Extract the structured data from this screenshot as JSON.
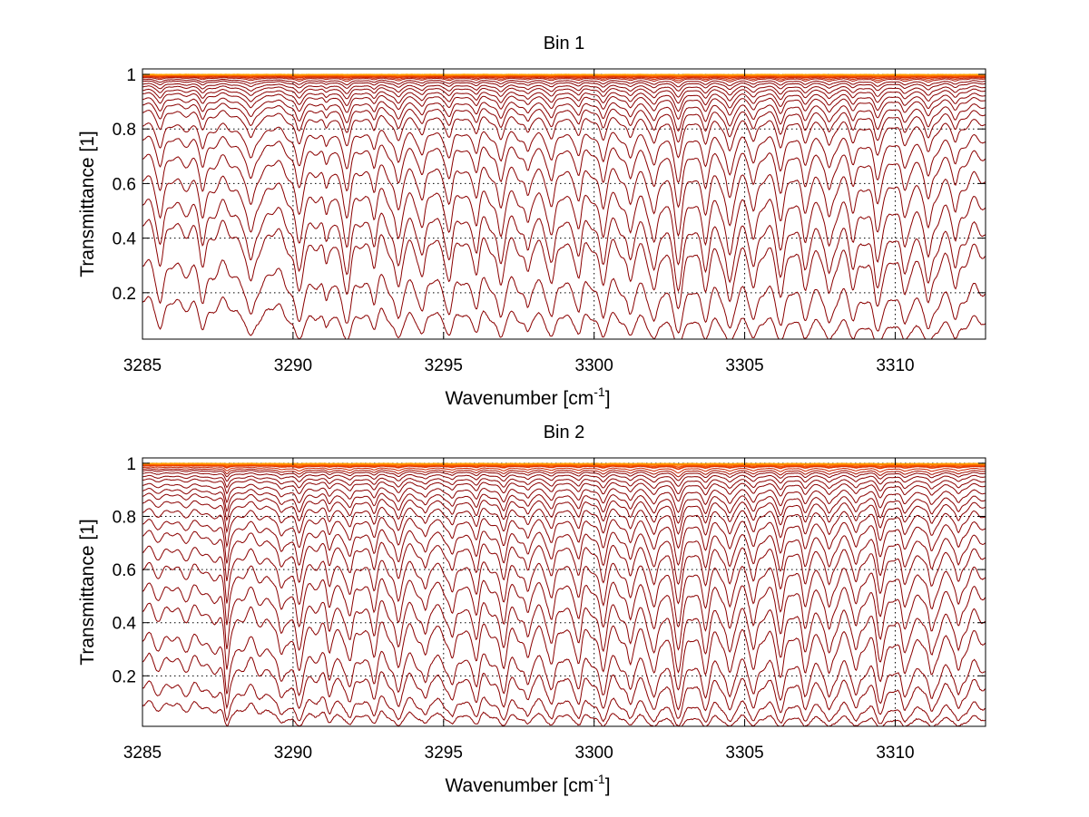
{
  "chart_data": [
    {
      "type": "line",
      "title": "Bin 1",
      "xlabel": "Wavenumber [cm",
      "xlabel_sup": "-1",
      "xlabel_end": "]",
      "ylabel": "Transmittance [1]",
      "xlim": [
        3285,
        3313
      ],
      "ylim": [
        0.03,
        1.02
      ],
      "xticks": [
        3285,
        3290,
        3295,
        3300,
        3305,
        3310
      ],
      "xtick_labels": [
        "3285",
        "3290",
        "3295",
        "3300",
        "3305",
        "3310"
      ],
      "yticks": [
        0.2,
        0.4,
        0.6,
        0.8,
        1
      ],
      "ytick_labels": [
        "0.2",
        "0.4",
        "0.6",
        "0.8",
        "1"
      ],
      "grid": true,
      "colors": [
        "#8b0000",
        "#aa1100",
        "#c82200",
        "#e03300",
        "#f25000",
        "#ff7000",
        "#ffa000"
      ],
      "series_base_transmittance": [
        0.06,
        0.15,
        0.28,
        0.36,
        0.46,
        0.56,
        0.65,
        0.72,
        0.79,
        0.83,
        0.86,
        0.89,
        0.91,
        0.93,
        0.945,
        0.96,
        0.97,
        0.98,
        0.985,
        0.99,
        0.994,
        0.997,
        0.999
      ],
      "absorption_lines": [
        {
          "x": 3285.6,
          "depth": 0.5,
          "width": 0.12
        },
        {
          "x": 3287.0,
          "depth": 0.55,
          "width": 0.12
        },
        {
          "x": 3288.6,
          "depth": 0.9,
          "width": 0.16
        },
        {
          "x": 3290.2,
          "depth": 1.0,
          "width": 0.16
        },
        {
          "x": 3291.1,
          "depth": 0.45,
          "width": 0.1
        },
        {
          "x": 3291.8,
          "depth": 0.95,
          "width": 0.15
        },
        {
          "x": 3292.7,
          "depth": 0.4,
          "width": 0.1
        },
        {
          "x": 3293.5,
          "depth": 0.8,
          "width": 0.14
        },
        {
          "x": 3294.3,
          "depth": 0.55,
          "width": 0.12
        },
        {
          "x": 3295.2,
          "depth": 0.6,
          "width": 0.13
        },
        {
          "x": 3296.1,
          "depth": 0.45,
          "width": 0.11
        },
        {
          "x": 3296.9,
          "depth": 0.65,
          "width": 0.13
        },
        {
          "x": 3297.8,
          "depth": 0.45,
          "width": 0.11
        },
        {
          "x": 3298.6,
          "depth": 0.6,
          "width": 0.13
        },
        {
          "x": 3299.5,
          "depth": 0.45,
          "width": 0.11
        },
        {
          "x": 3300.3,
          "depth": 0.55,
          "width": 0.12
        },
        {
          "x": 3301.2,
          "depth": 0.5,
          "width": 0.12
        },
        {
          "x": 3302.0,
          "depth": 0.65,
          "width": 0.13
        },
        {
          "x": 3302.8,
          "depth": 1.0,
          "width": 0.15
        },
        {
          "x": 3303.7,
          "depth": 0.55,
          "width": 0.12
        },
        {
          "x": 3304.5,
          "depth": 0.85,
          "width": 0.14
        },
        {
          "x": 3305.3,
          "depth": 0.5,
          "width": 0.12
        },
        {
          "x": 3306.2,
          "depth": 0.65,
          "width": 0.13
        },
        {
          "x": 3307.0,
          "depth": 0.5,
          "width": 0.12
        },
        {
          "x": 3307.8,
          "depth": 0.65,
          "width": 0.13
        },
        {
          "x": 3308.6,
          "depth": 0.5,
          "width": 0.12
        },
        {
          "x": 3309.4,
          "depth": 0.9,
          "width": 0.15
        },
        {
          "x": 3310.3,
          "depth": 0.6,
          "width": 0.13
        },
        {
          "x": 3311.1,
          "depth": 0.85,
          "width": 0.14
        },
        {
          "x": 3312.0,
          "depth": 0.5,
          "width": 0.12
        }
      ]
    },
    {
      "type": "line",
      "title": "Bin 2",
      "xlabel": "Wavenumber [cm",
      "xlabel_sup": "-1",
      "xlabel_end": "]",
      "ylabel": "Transmittance [1]",
      "xlim": [
        3285,
        3313
      ],
      "ylim": [
        0.01,
        1.02
      ],
      "xticks": [
        3285,
        3290,
        3295,
        3300,
        3305,
        3310
      ],
      "xtick_labels": [
        "3285",
        "3290",
        "3295",
        "3300",
        "3305",
        "3310"
      ],
      "yticks": [
        0.2,
        0.4,
        0.6,
        0.8,
        1
      ],
      "ytick_labels": [
        "0.2",
        "0.4",
        "0.6",
        "0.8",
        "1"
      ],
      "grid": true,
      "colors": [
        "#8b0000",
        "#aa1100",
        "#c82200",
        "#e03300",
        "#f25000",
        "#ff7000",
        "#ffa000"
      ],
      "series_base_transmittance": [
        0.02,
        0.05,
        0.11,
        0.17,
        0.27,
        0.35,
        0.44,
        0.52,
        0.6,
        0.66,
        0.72,
        0.77,
        0.81,
        0.84,
        0.87,
        0.9,
        0.92,
        0.94,
        0.955,
        0.965,
        0.975,
        0.985,
        0.99,
        0.995,
        0.998
      ],
      "absorption_lines": [
        {
          "x": 3287.8,
          "depth": 0.9,
          "width": 0.08
        },
        {
          "x": 3289.6,
          "depth": 0.55,
          "width": 0.13
        },
        {
          "x": 3290.2,
          "depth": 0.85,
          "width": 0.14
        },
        {
          "x": 3291.2,
          "depth": 0.45,
          "width": 0.11
        },
        {
          "x": 3291.9,
          "depth": 0.65,
          "width": 0.13
        },
        {
          "x": 3292.7,
          "depth": 0.45,
          "width": 0.11
        },
        {
          "x": 3293.5,
          "depth": 0.7,
          "width": 0.13
        },
        {
          "x": 3294.4,
          "depth": 0.5,
          "width": 0.12
        },
        {
          "x": 3295.3,
          "depth": 0.55,
          "width": 0.12
        },
        {
          "x": 3296.1,
          "depth": 0.45,
          "width": 0.11
        },
        {
          "x": 3297.0,
          "depth": 0.6,
          "width": 0.13
        },
        {
          "x": 3297.8,
          "depth": 0.45,
          "width": 0.11
        },
        {
          "x": 3298.6,
          "depth": 0.5,
          "width": 0.12
        },
        {
          "x": 3299.5,
          "depth": 0.45,
          "width": 0.11
        },
        {
          "x": 3300.3,
          "depth": 0.55,
          "width": 0.12
        },
        {
          "x": 3301.2,
          "depth": 0.45,
          "width": 0.11
        },
        {
          "x": 3302.0,
          "depth": 0.6,
          "width": 0.13
        },
        {
          "x": 3302.8,
          "depth": 0.9,
          "width": 0.15
        },
        {
          "x": 3303.7,
          "depth": 0.5,
          "width": 0.12
        },
        {
          "x": 3304.5,
          "depth": 0.55,
          "width": 0.12
        },
        {
          "x": 3305.3,
          "depth": 0.45,
          "width": 0.11
        },
        {
          "x": 3306.2,
          "depth": 0.55,
          "width": 0.12
        },
        {
          "x": 3307.0,
          "depth": 0.45,
          "width": 0.11
        },
        {
          "x": 3307.8,
          "depth": 0.55,
          "width": 0.12
        },
        {
          "x": 3308.7,
          "depth": 0.45,
          "width": 0.11
        },
        {
          "x": 3309.5,
          "depth": 0.6,
          "width": 0.13
        },
        {
          "x": 3310.3,
          "depth": 0.5,
          "width": 0.12
        },
        {
          "x": 3311.2,
          "depth": 0.55,
          "width": 0.12
        },
        {
          "x": 3312.1,
          "depth": 0.45,
          "width": 0.11
        }
      ]
    }
  ]
}
